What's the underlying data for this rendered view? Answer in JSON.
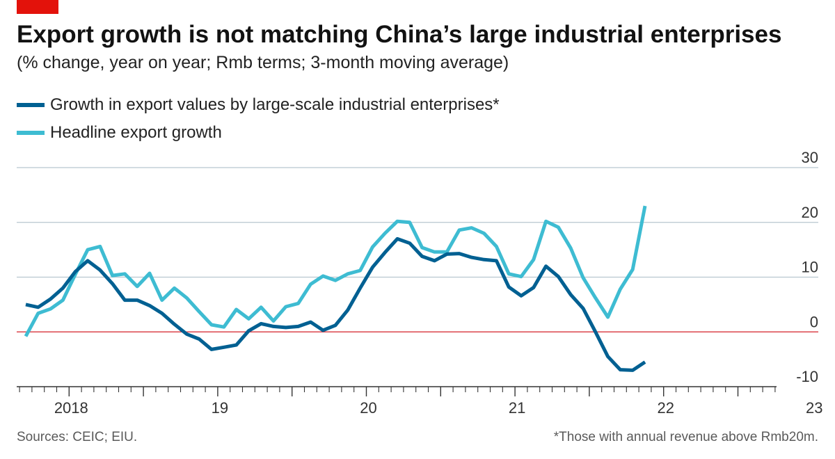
{
  "header": {
    "title": "Export growth is not matching China’s large industrial enterprises",
    "subtitle": "(% change, year on year; Rmb terms; 3-month moving average)"
  },
  "footer": {
    "source": "Sources: CEIC; EIU.",
    "footnote": "*Those with annual revenue above Rmb20m."
  },
  "colors": {
    "brand_red": "#e3120b",
    "series_dark": "#006092",
    "series_light": "#3ebcd2",
    "zero_line": "#db444b",
    "gridline": "#b7c6cf"
  },
  "chart_data": {
    "type": "line",
    "title": "Export growth is not matching China’s large industrial enterprises",
    "subtitle": "(% change, year on year; Rmb terms; 3-month moving average)",
    "ylabel": "% change, year on year",
    "ylim": [
      -10,
      30
    ],
    "yticks": [
      30,
      20,
      10,
      0,
      -10
    ],
    "grid": true,
    "legend_position": "top-left",
    "x_start": "2017-09",
    "x_end": "2023-03",
    "x_tick_labels": [
      {
        "month": "2018-01",
        "label": "2018"
      },
      {
        "month": "2019-01",
        "label": "19"
      },
      {
        "month": "2020-01",
        "label": "20"
      },
      {
        "month": "2021-01",
        "label": "21"
      },
      {
        "month": "2022-01",
        "label": "22"
      },
      {
        "month": "2023-01",
        "label": "23"
      }
    ],
    "series": [
      {
        "name": "Growth in export values by large-scale industrial enterprises*",
        "color": "#006092",
        "start": "2017-09",
        "values": [
          5,
          4.5,
          6,
          8,
          11,
          13,
          11.3,
          8.8,
          5.8,
          5.8,
          4.8,
          3.4,
          1.4,
          -0.4,
          -1.3,
          -3.2,
          -2.8,
          -2.4,
          0.2,
          1.5,
          1,
          0.8,
          1,
          1.8,
          0.3,
          1.2,
          4,
          8,
          11.8,
          14.5,
          17,
          16.2,
          13.8,
          13,
          14.2,
          14.3,
          13.6,
          13.2,
          13,
          8.2,
          6.6,
          8.1,
          12,
          10.1,
          6.8,
          4.3,
          0,
          -4.5,
          -6.9,
          -7,
          -5.5
        ]
      },
      {
        "name": "Headline export growth",
        "color": "#3ebcd2",
        "start": "2017-09",
        "values": [
          -0.8,
          3.4,
          4.2,
          5.8,
          10.5,
          15,
          15.6,
          10.3,
          10.6,
          8.3,
          10.7,
          5.8,
          8,
          6.2,
          3.7,
          1.3,
          0.9,
          4.1,
          2.4,
          4.5,
          2,
          4.6,
          5.2,
          8.7,
          10.2,
          9.4,
          10.6,
          11.2,
          15.5,
          18,
          20.2,
          20,
          15.4,
          14.6,
          14.6,
          18.6,
          19,
          18,
          15.6,
          10.6,
          10.1,
          13.2,
          20.2,
          19.1,
          15.3,
          9.9,
          6.2,
          2.7,
          7.8,
          11.4,
          23
        ]
      }
    ]
  }
}
